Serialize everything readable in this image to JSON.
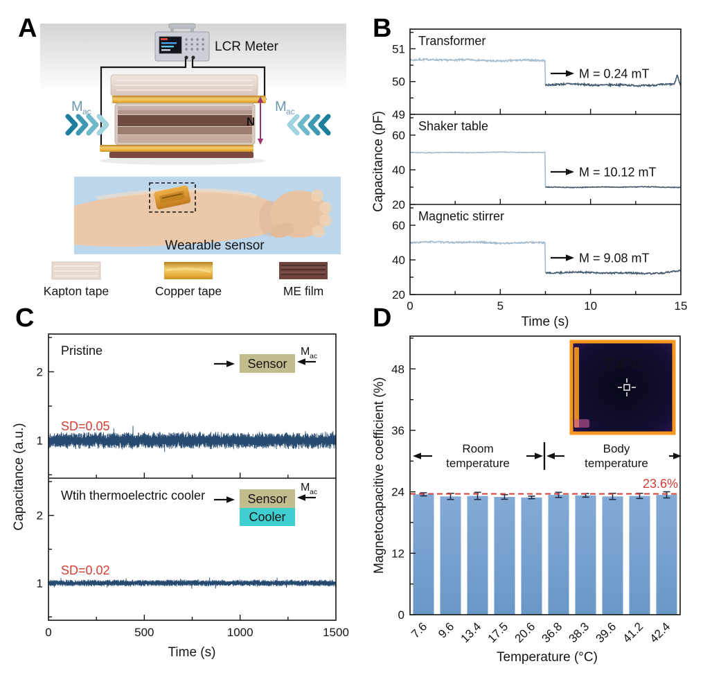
{
  "figure": {
    "panel_labels": {
      "a": "A",
      "b": "B",
      "c": "C",
      "d": "D"
    }
  },
  "panel_a": {
    "lcr_meter_label": "LCR Meter",
    "mac_label": "M",
    "mac_sub": "ac",
    "n_label": "N",
    "wearable_label": "Wearable sensor",
    "legend": [
      {
        "name": "kapton-tape",
        "label": "Kapton tape",
        "color": "#e7dad1"
      },
      {
        "name": "copper-tape",
        "label": "Copper tape",
        "color": "#eebc55"
      },
      {
        "name": "me-film",
        "label": "ME film",
        "color": "#6e453e"
      }
    ]
  },
  "panel_c_inset": {
    "sensor_label": "Sensor",
    "cooler_label": "Cooler",
    "mac_label": "M",
    "mac_sub": "ac",
    "sensor_color": "#c2bd8e",
    "cooler_color": "#3fcfd0"
  },
  "colors": {
    "line_pre": "#a5bccf",
    "line_post": "#41586f",
    "noise": "#25496f",
    "bar_top": "#83aad4",
    "bar_bottom": "#6a97c7",
    "error": "#1b2b4a",
    "accent_red": "#d43d33",
    "mac_text": "#6d98ae",
    "n_purple": "#9c3570"
  },
  "chart_data": [
    {
      "panel": "B",
      "type": "line",
      "xlabel": "Time (s)",
      "ylabel": "Capacitance (pF)",
      "xlim": [
        0,
        15
      ],
      "xticks": [
        0,
        5,
        10,
        15
      ],
      "subplots": [
        {
          "title": "Transformer",
          "annotation": "M = 0.24 mT",
          "ylim": [
            49,
            51.6
          ],
          "yticks": [
            51,
            50,
            49
          ],
          "yminors": [
            51.5,
            50.5,
            49.5
          ],
          "baseline_pF": 50.65,
          "after_pF": 49.9,
          "step_time_s": 7.5,
          "noise_pF": 0.05
        },
        {
          "title": "Shaker table",
          "annotation": "M = 10.12 mT",
          "ylim": [
            20,
            72
          ],
          "yticks": [
            60,
            40,
            20
          ],
          "yminors": [
            70,
            50,
            30
          ],
          "baseline_pF": 50.0,
          "after_pF": 30.0,
          "step_time_s": 7.5,
          "noise_pF": 0.35
        },
        {
          "title": "Magnetic stirrer",
          "annotation": "M = 9.08 mT",
          "ylim": [
            20,
            72
          ],
          "yticks": [
            60,
            40,
            20
          ],
          "yminors": [
            70,
            50,
            30
          ],
          "baseline_pF": 50.0,
          "after_pF": 32.5,
          "step_time_s": 7.5,
          "noise_pF": 0.8
        }
      ]
    },
    {
      "panel": "C",
      "type": "line",
      "xlabel": "Time (s)",
      "ylabel": "Capacitance (a.u.)",
      "xlim": [
        0,
        1500
      ],
      "xticks": [
        0,
        500,
        1000,
        1500
      ],
      "subplots": [
        {
          "title": "Pristine",
          "sd_label": "SD=0.05",
          "mean": 1.0,
          "sd": 0.05,
          "ylim": [
            0.45,
            2.55
          ],
          "yticks": [
            2,
            1
          ],
          "yminors": [
            2.5,
            1.5,
            0.5
          ]
        },
        {
          "title": "Wtih thermoelectric cooler",
          "sd_label": "SD=0.02",
          "mean": 1.0,
          "sd": 0.02,
          "ylim": [
            0.45,
            2.55
          ],
          "yticks": [
            2,
            1
          ],
          "yminors": [
            2.5,
            1.5,
            0.5
          ]
        }
      ]
    },
    {
      "panel": "D",
      "type": "bar",
      "xlabel": "Temperature (°C)",
      "ylabel": "Magnetocapacitive coefficient (%)",
      "categories": [
        "7.6",
        "9.6",
        "13.4",
        "17.5",
        "20.6",
        "36.8",
        "38.3",
        "39.6",
        "41.2",
        "42.4"
      ],
      "values": [
        23.5,
        23.1,
        23.2,
        23.0,
        22.9,
        23.4,
        23.3,
        23.1,
        23.2,
        23.4
      ],
      "errors": [
        0.3,
        0.6,
        0.7,
        0.45,
        0.25,
        0.5,
        0.35,
        0.6,
        0.5,
        0.6
      ],
      "ylim": [
        0,
        54.4
      ],
      "yticks": [
        0,
        12,
        24,
        36,
        48
      ],
      "yminors": [
        6,
        18,
        30,
        42,
        54
      ],
      "reference_line": 23.6,
      "reference_label": "23.6%",
      "region_labels": {
        "room_line1": "Room",
        "room_line2": "temperature",
        "body_line1": "Body",
        "body_line2": "temperature"
      },
      "inset_temp_label": "7.6 °C"
    }
  ]
}
